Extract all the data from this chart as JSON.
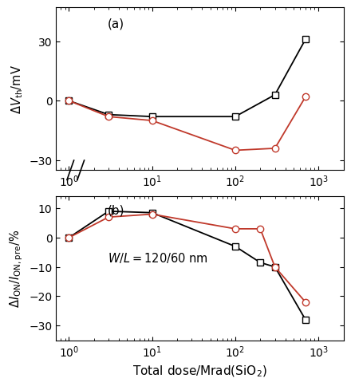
{
  "panel_a": {
    "black_x": [
      1,
      3,
      10,
      100,
      300,
      700
    ],
    "black_y": [
      0,
      -7,
      -8,
      -8,
      3,
      31
    ],
    "red_x": [
      1,
      3,
      10,
      100,
      300,
      700
    ],
    "red_y": [
      0,
      -8,
      -10,
      -25,
      -24,
      2
    ],
    "ylabel": "$\\Delta V_{\\mathrm{th}}$/mV",
    "label": "(a)",
    "ylim": [
      -35,
      47
    ],
    "yticks": [
      -30,
      0,
      30
    ]
  },
  "panel_b": {
    "black_x": [
      1,
      3,
      10,
      100,
      200,
      300,
      700
    ],
    "black_y": [
      0,
      9,
      8.5,
      -3,
      -8.5,
      -10,
      -28
    ],
    "red_x": [
      1,
      3,
      10,
      100,
      200,
      300,
      700
    ],
    "red_y": [
      0,
      7,
      8,
      3,
      3,
      -10,
      -22
    ],
    "ylabel": "$\\Delta I_{\\mathrm{ON}}/I_{\\mathrm{ON,pre}}$/%",
    "label": "(b)",
    "wl_text": "$W/L = 120/60$ nm",
    "ylim": [
      -35,
      14
    ],
    "yticks": [
      -30,
      -20,
      -10,
      0,
      10
    ]
  },
  "xlabel": "Total dose/Mrad(SiO$_2$)",
  "black_color": "#000000",
  "red_color": "#c0392b",
  "marker_size": 6,
  "linewidth": 1.3
}
